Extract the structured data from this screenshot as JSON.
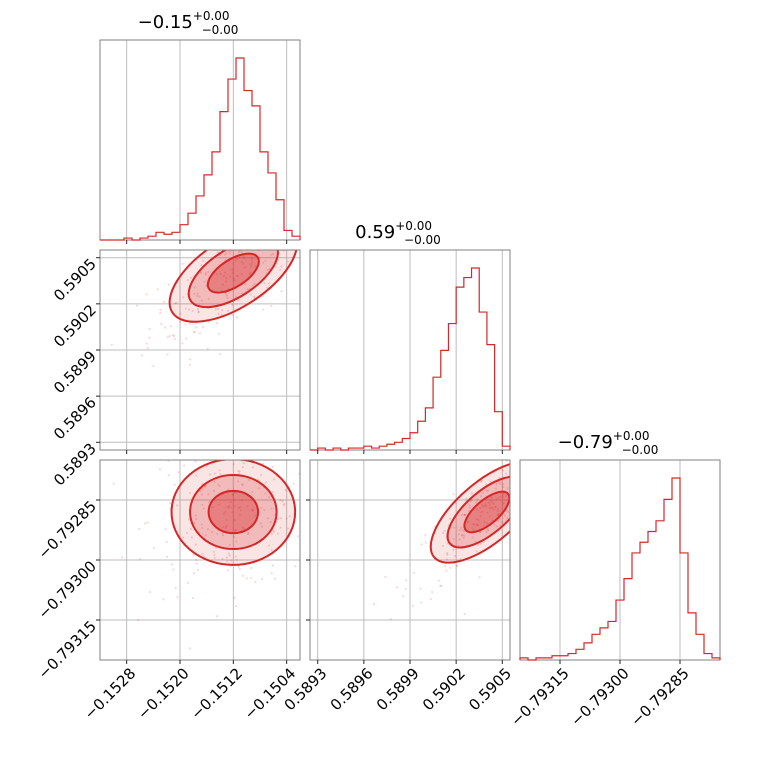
{
  "chart_data": {
    "type": "corner",
    "color": "#d62728",
    "parameters": [
      {
        "title": {
          "main": "−0.15",
          "sup": "+0.00",
          "sub": "−0.00"
        },
        "range": [
          -0.1532,
          -0.1502
        ],
        "ticks": [
          {
            "value": -0.1528,
            "label": "−0.1528"
          },
          {
            "value": -0.152,
            "label": "−0.1520"
          },
          {
            "value": -0.1512,
            "label": "−0.1512"
          },
          {
            "value": -0.1504,
            "label": "−0.1504"
          }
        ],
        "histogram": {
          "bin_edges": [
            -0.1532,
            -0.15308,
            -0.15296,
            -0.15284,
            -0.15272,
            -0.1526,
            -0.15248,
            -0.15236,
            -0.15224,
            -0.15212,
            -0.152,
            -0.15188,
            -0.15176,
            -0.15164,
            -0.15152,
            -0.1514,
            -0.15128,
            -0.15116,
            -0.15104,
            -0.15092,
            -0.1508,
            -0.15068,
            -0.15056,
            -0.15044,
            -0.15032,
            -0.1502
          ],
          "counts": [
            0,
            0,
            0,
            1,
            0,
            1,
            2,
            4,
            3,
            4,
            8,
            14,
            23,
            34,
            46,
            67,
            84,
            95,
            78,
            70,
            46,
            35,
            21,
            5,
            2
          ]
        },
        "center": -0.1512,
        "sigma": 0.00045
      },
      {
        "title": {
          "main": "0.59",
          "sup": "+0.00",
          "sub": "−0.00"
        },
        "range": [
          0.58925,
          0.59055
        ],
        "ticks": [
          {
            "value": 0.5893,
            "label": "0.5893"
          },
          {
            "value": 0.5896,
            "label": "0.5896"
          },
          {
            "value": 0.5899,
            "label": "0.5899"
          },
          {
            "value": 0.5902,
            "label": "0.5902"
          },
          {
            "value": 0.5905,
            "label": "0.5905"
          }
        ],
        "histogram": {
          "bin_edges": [
            0.58925,
            0.5893,
            0.58935,
            0.5894,
            0.58945,
            0.5895,
            0.58955,
            0.5896,
            0.58965,
            0.5897,
            0.58975,
            0.5898,
            0.58985,
            0.5899,
            0.58995,
            0.59,
            0.59005,
            0.5901,
            0.59015,
            0.5902,
            0.59025,
            0.5903,
            0.59035,
            0.5904,
            0.59045,
            0.5905,
            0.59055
          ],
          "counts": [
            0,
            1,
            0,
            1,
            0,
            1,
            1,
            2,
            1,
            2,
            3,
            4,
            6,
            9,
            15,
            22,
            38,
            52,
            66,
            85,
            90,
            95,
            72,
            55,
            20,
            2
          ]
        },
        "center": 0.5904,
        "sigma": 0.00018
      },
      {
        "title": {
          "main": "−0.79",
          "sup": "+0.00",
          "sub": "−0.00"
        },
        "range": [
          -0.79325,
          -0.79275
        ],
        "ticks": [
          {
            "value": -0.79315,
            "label": "−0.79315"
          },
          {
            "value": -0.793,
            "label": "−0.79300"
          },
          {
            "value": -0.79285,
            "label": "−0.79285"
          }
        ],
        "histogram": {
          "bin_edges": [
            -0.79325,
            -0.79323,
            -0.79321,
            -0.79319,
            -0.79317,
            -0.79315,
            -0.79313,
            -0.79311,
            -0.79309,
            -0.79307,
            -0.79305,
            -0.79303,
            -0.79301,
            -0.79299,
            -0.79297,
            -0.79295,
            -0.79293,
            -0.79291,
            -0.79289,
            -0.79287,
            -0.79285,
            -0.79283,
            -0.79281,
            -0.79279,
            -0.79277,
            -0.79275
          ],
          "counts": [
            1,
            0,
            1,
            1,
            2,
            2,
            3,
            5,
            8,
            12,
            15,
            18,
            28,
            38,
            50,
            55,
            60,
            65,
            75,
            85,
            50,
            22,
            12,
            3,
            1
          ]
        },
        "center": -0.79288,
        "sigma": 7e-05
      }
    ],
    "pairs": [
      {
        "x": 0,
        "y": 1,
        "corr": 0.7
      },
      {
        "x": 0,
        "y": 2,
        "corr": 0.1
      },
      {
        "x": 1,
        "y": 2,
        "corr": 0.85
      }
    ],
    "grid": true,
    "contour_levels": 3
  }
}
